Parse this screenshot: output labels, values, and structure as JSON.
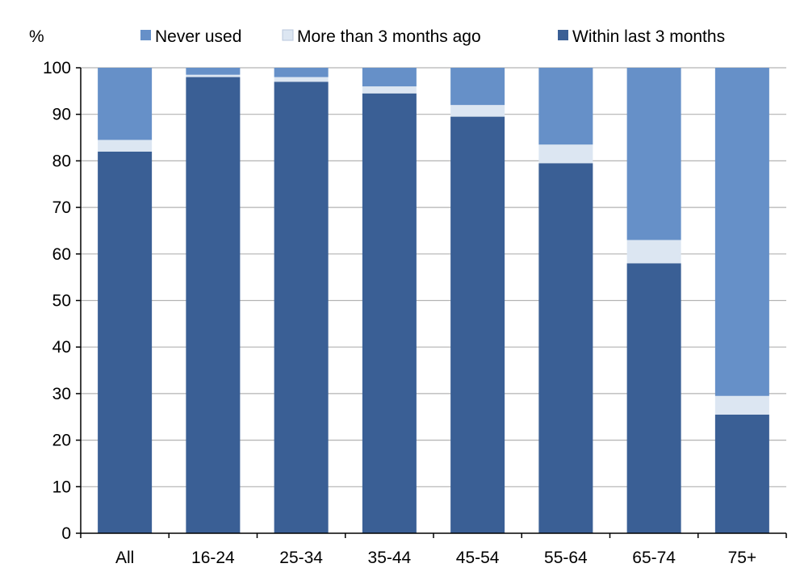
{
  "chart_data": {
    "type": "bar",
    "stacked": true,
    "unit_label": "%",
    "categories": [
      "All",
      "16-24",
      "25-34",
      "35-44",
      "45-54",
      "55-64",
      "65-74",
      "75+"
    ],
    "series": [
      {
        "name": "Within last 3 months",
        "color": "#3A5F95",
        "values": [
          82,
          98,
          97,
          94.5,
          89.5,
          79.5,
          58,
          25.5
        ]
      },
      {
        "name": "More than 3 months ago",
        "color": "#DCE6F2",
        "values": [
          2.5,
          0.5,
          1,
          1.5,
          2.5,
          4,
          5,
          4
        ]
      },
      {
        "name": "Never used",
        "color": "#6690C8",
        "values": [
          15.5,
          1.5,
          2,
          4,
          8,
          16.5,
          37,
          70.5
        ]
      }
    ],
    "legend_order": [
      "Never used",
      "More than 3 months ago",
      "Within last 3 months"
    ],
    "ylim": [
      0,
      100
    ],
    "yticks": [
      0,
      10,
      20,
      30,
      40,
      50,
      60,
      70,
      80,
      90,
      100
    ],
    "grid": true,
    "legend_position": "top"
  }
}
